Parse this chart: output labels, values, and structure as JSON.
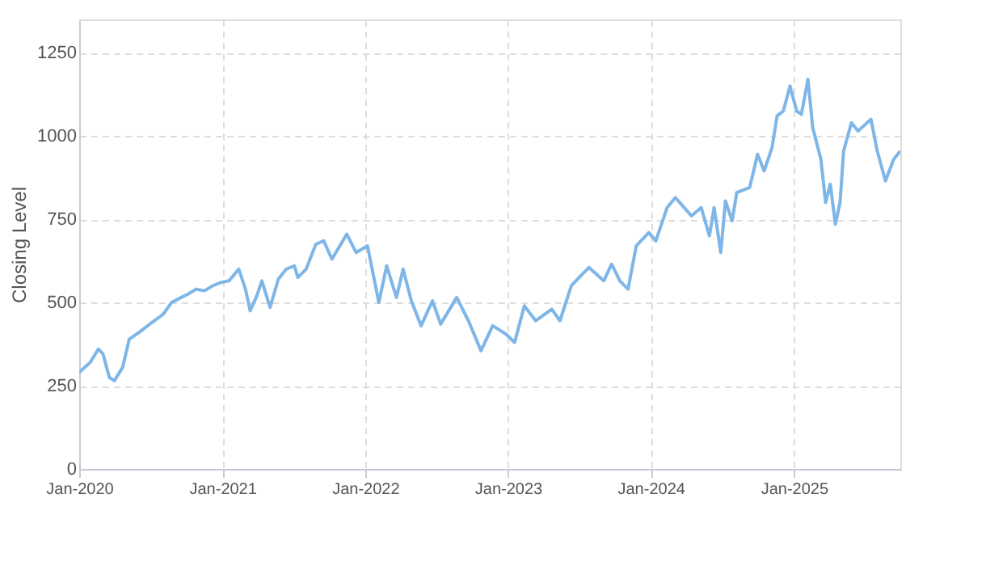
{
  "chart_data": {
    "type": "line",
    "ylabel": "Closing Level",
    "xlim": [
      "2020-01-01",
      "2025-09-30"
    ],
    "ylim": [
      0,
      1350
    ],
    "yticks": [
      0,
      250,
      500,
      750,
      1000,
      1250
    ],
    "xticks": [
      {
        "value": "2020-01-01",
        "label": "Jan-2020"
      },
      {
        "value": "2021-01-01",
        "label": "Jan-2021"
      },
      {
        "value": "2022-01-01",
        "label": "Jan-2022"
      },
      {
        "value": "2023-01-01",
        "label": "Jan-2023"
      },
      {
        "value": "2024-01-01",
        "label": "Jan-2024"
      },
      {
        "value": "2025-01-01",
        "label": "Jan-2025"
      }
    ],
    "grid": true,
    "marker": "none",
    "line_style": "solid",
    "x": [
      "2020-01-01",
      "2020-01-29",
      "2020-02-19",
      "2020-03-02",
      "2020-03-18",
      "2020-03-31",
      "2020-04-21",
      "2020-05-08",
      "2020-06-02",
      "2020-07-05",
      "2020-08-03",
      "2020-08-24",
      "2020-09-18",
      "2020-10-05",
      "2020-10-26",
      "2020-11-16",
      "2020-12-07",
      "2020-12-28",
      "2021-01-18",
      "2021-02-12",
      "2021-03-01",
      "2021-03-13",
      "2021-03-30",
      "2021-04-12",
      "2021-05-03",
      "2021-05-24",
      "2021-06-13",
      "2021-07-04",
      "2021-07-13",
      "2021-08-03",
      "2021-08-28",
      "2021-09-17",
      "2021-10-08",
      "2021-11-15",
      "2021-12-09",
      "2022-01-07",
      "2022-02-05",
      "2022-02-25",
      "2022-03-22",
      "2022-04-08",
      "2022-04-29",
      "2022-05-24",
      "2022-06-22",
      "2022-07-13",
      "2022-08-23",
      "2022-09-22",
      "2022-10-24",
      "2022-11-23",
      "2022-12-27",
      "2023-01-18",
      "2023-02-12",
      "2023-03-13",
      "2023-04-23",
      "2023-05-14",
      "2023-06-12",
      "2023-07-02",
      "2023-07-27",
      "2023-09-03",
      "2023-09-23",
      "2023-10-14",
      "2023-11-04",
      "2023-11-25",
      "2023-12-27",
      "2024-01-14",
      "2024-02-12",
      "2024-03-04",
      "2024-04-14",
      "2024-05-09",
      "2024-05-30",
      "2024-06-11",
      "2024-06-28",
      "2024-07-10",
      "2024-07-27",
      "2024-08-08",
      "2024-09-10",
      "2024-09-30",
      "2024-10-17",
      "2024-11-06",
      "2024-11-19",
      "2024-12-05",
      "2024-12-22",
      "2025-01-08",
      "2025-01-20",
      "2025-02-06",
      "2025-02-18",
      "2025-03-11",
      "2025-03-23",
      "2025-04-04",
      "2025-04-17",
      "2025-04-29",
      "2025-05-08",
      "2025-05-28",
      "2025-06-14",
      "2025-07-17",
      "2025-08-02",
      "2025-08-23",
      "2025-09-13",
      "2025-09-30"
    ],
    "series": [
      {
        "color": "#7eb6e8",
        "values": [
          290,
          320,
          360,
          345,
          275,
          265,
          305,
          390,
          410,
          440,
          465,
          500,
          515,
          525,
          540,
          535,
          550,
          560,
          565,
          600,
          540,
          475,
          520,
          565,
          485,
          570,
          600,
          610,
          575,
          600,
          675,
          685,
          630,
          705,
          650,
          670,
          500,
          610,
          515,
          600,
          505,
          430,
          505,
          435,
          515,
          445,
          355,
          430,
          405,
          380,
          490,
          445,
          480,
          445,
          550,
          575,
          605,
          565,
          615,
          565,
          540,
          670,
          710,
          685,
          785,
          815,
          760,
          785,
          700,
          785,
          650,
          805,
          745,
          830,
          845,
          945,
          895,
          965,
          1060,
          1075,
          1150,
          1075,
          1065,
          1170,
          1025,
          930,
          800,
          855,
          735,
          800,
          955,
          1040,
          1015,
          1050,
          955,
          865,
          930,
          955
        ]
      }
    ]
  }
}
